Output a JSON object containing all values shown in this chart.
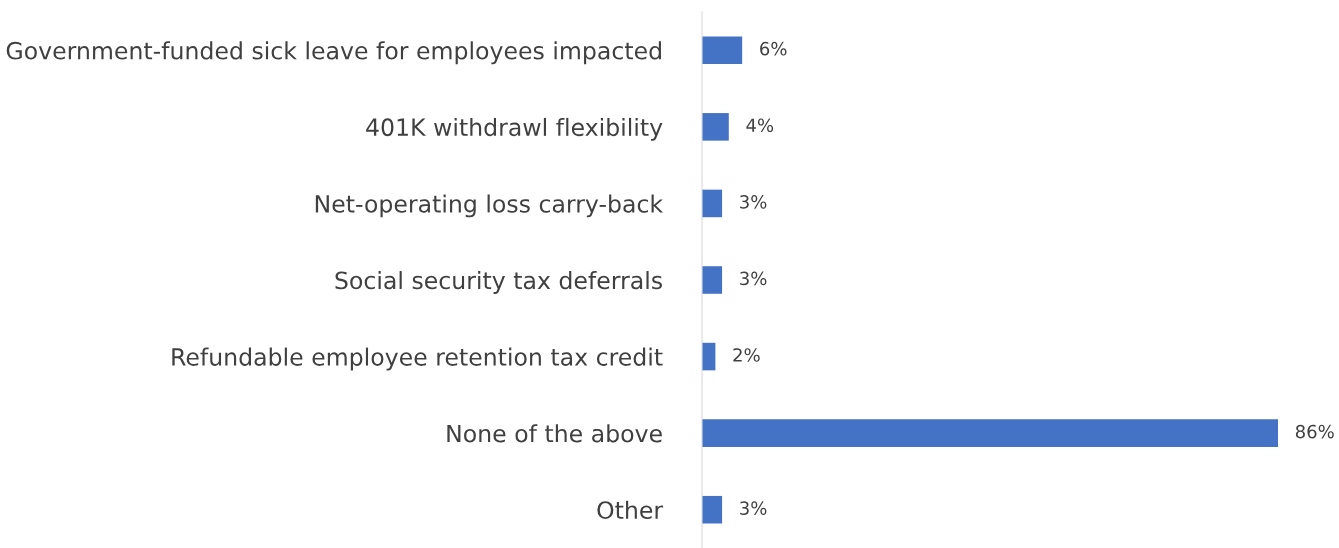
{
  "chart_data": {
    "type": "bar",
    "orientation": "horizontal",
    "categories": [
      "Government-funded sick leave for employees impacted",
      "401K withdrawl flexibility",
      "Net-operating loss carry-back",
      "Social security tax deferrals",
      "Refundable employee retention tax credit",
      "None of the above",
      "Other"
    ],
    "values": [
      6,
      4,
      3,
      3,
      2,
      86,
      3
    ],
    "value_labels": [
      "6%",
      "4%",
      "3%",
      "3%",
      "2%",
      "86%",
      "3%"
    ],
    "color": "#4472c4",
    "grid": false,
    "legend": false
  }
}
